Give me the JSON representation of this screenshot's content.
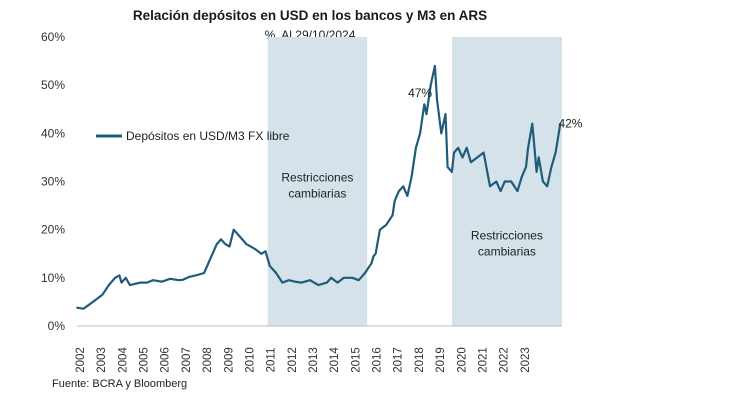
{
  "chart_data": {
    "type": "line",
    "title": "Relación depósitos en USD en los bancos y M3 en ARS",
    "subtitle": "%. Al 29/10/2024",
    "source": "Fuente: BCRA y Bloomberg",
    "ylim": [
      0,
      60
    ],
    "yticks": [
      "0%",
      "10%",
      "20%",
      "30%",
      "40%",
      "50%",
      "60%"
    ],
    "ytick_values": [
      0,
      10,
      20,
      30,
      40,
      50,
      60
    ],
    "xlim": [
      2002,
      2024.9
    ],
    "x_tick_labels": [
      "2002",
      "2003",
      "2004",
      "2005",
      "2006",
      "2007",
      "2008",
      "2009",
      "2010",
      "2011",
      "2012",
      "2013",
      "2014",
      "2015",
      "2016",
      "2017",
      "2018",
      "2019",
      "2020",
      "2021",
      "2022",
      "2023"
    ],
    "x_tick_values": [
      2002,
      2003,
      2004,
      2005,
      2006,
      2007,
      2008,
      2009,
      2010,
      2011,
      2012,
      2013,
      2014,
      2015,
      2016,
      2017,
      2018,
      2019,
      2020,
      2021,
      2022,
      2023
    ],
    "legend": {
      "label": "Depósitos en USD/M3 FX libre",
      "color": "#1f5c7a"
    },
    "series": [
      {
        "name": "Depósitos en USD/M3 FX libre",
        "color": "#1f5c7a",
        "x": [
          2002.0,
          2002.3,
          2002.6,
          2002.9,
          2003.2,
          2003.5,
          2003.8,
          2004.0,
          2004.1,
          2004.3,
          2004.5,
          2004.8,
          2005.0,
          2005.3,
          2005.6,
          2006.0,
          2006.4,
          2006.8,
          2007.0,
          2007.3,
          2007.6,
          2008.0,
          2008.3,
          2008.6,
          2008.8,
          2009.0,
          2009.2,
          2009.4,
          2009.7,
          2010.0,
          2010.4,
          2010.7,
          2010.9,
          2011.1,
          2011.4,
          2011.7,
          2012.0,
          2012.3,
          2012.6,
          2013.0,
          2013.4,
          2013.8,
          2014.0,
          2014.3,
          2014.6,
          2015.0,
          2015.3,
          2015.6,
          2015.9,
          2016.0,
          2016.1,
          2016.3,
          2016.6,
          2016.9,
          2017.0,
          2017.2,
          2017.4,
          2017.6,
          2017.8,
          2018.0,
          2018.2,
          2018.4,
          2018.5,
          2018.7,
          2018.9,
          2019.0,
          2019.2,
          2019.4,
          2019.5,
          2019.7,
          2019.8,
          2020.0,
          2020.2,
          2020.4,
          2020.6,
          2020.9,
          2021.2,
          2021.5,
          2021.8,
          2022.0,
          2022.2,
          2022.5,
          2022.8,
          2023.0,
          2023.2,
          2023.3,
          2023.5,
          2023.7,
          2023.8,
          2024.0,
          2024.2,
          2024.4,
          2024.6,
          2024.82
        ],
        "y": [
          3.8,
          3.6,
          4.5,
          5.5,
          6.5,
          8.5,
          10.0,
          10.5,
          9.0,
          10.0,
          8.5,
          8.8,
          9.0,
          9.0,
          9.5,
          9.2,
          9.8,
          9.5,
          9.6,
          10.2,
          10.5,
          11.0,
          14.0,
          17.0,
          18.0,
          17.0,
          16.5,
          20.0,
          18.5,
          17.0,
          16.0,
          15.0,
          15.5,
          12.5,
          11.0,
          9.0,
          9.5,
          9.2,
          9.0,
          9.5,
          8.5,
          9.0,
          10.0,
          9.0,
          10.0,
          10.0,
          9.5,
          11.0,
          13.0,
          14.5,
          15.0,
          20.0,
          21.0,
          23.0,
          26.0,
          28.0,
          29.0,
          27.0,
          31.0,
          37.0,
          40.0,
          46.0,
          44.0,
          50.0,
          54.0,
          47.0,
          40.0,
          44.0,
          33.0,
          32.0,
          36.0,
          37.0,
          35.0,
          37.0,
          34.0,
          35.0,
          36.0,
          29.0,
          30.0,
          28.0,
          30.0,
          30.0,
          28.0,
          31.0,
          33.0,
          37.0,
          42.0,
          32.0,
          35.0,
          30.0,
          29.0,
          33.0,
          36.0,
          42.0
        ]
      }
    ],
    "shaded_regions": [
      {
        "from": 2011.0,
        "to": 2015.7,
        "label_line1": "Restricciones",
        "label_line2": "cambiarias",
        "label_y": 30
      },
      {
        "from": 2019.7,
        "to": 2024.9,
        "label_line1": "Restricciones",
        "label_line2": "cambiarias",
        "label_y": 18
      }
    ],
    "annotations": [
      {
        "text": "47%",
        "x": 2018.2,
        "y": 47.5
      },
      {
        "text": "42%",
        "x": 2025.3,
        "y": 41.2
      }
    ],
    "colors": {
      "shade": "#d6e2ea",
      "line": "#1f5c7a"
    }
  }
}
